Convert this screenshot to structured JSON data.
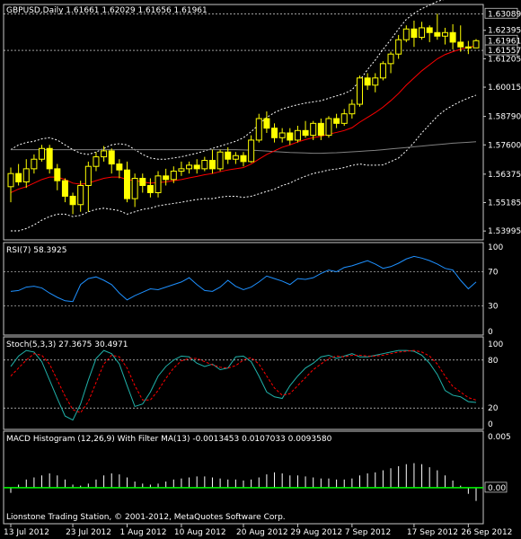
{
  "colors": {
    "background": "#000000",
    "frame": "#c8c8c8",
    "grid_dashed": "#ffffff",
    "bull_candle": "#ffff00",
    "bear_candle": "#000000",
    "candle_outline": "#ffff00",
    "ma_fast": "#ff0000",
    "ma_slow": "#808080",
    "bollinger": "#ffffff",
    "rsi_line": "#1e90ff",
    "stoch_main": "#20b2aa",
    "stoch_signal": "#ff0000",
    "macd_hist": "#ffffff",
    "macd_signal": "#00ff00",
    "current_price_box": "#000000"
  },
  "footer_text": "Lionstone Trading Station, © 2001-2012, MetaQuotes Software Corp.",
  "chart_data": [
    {
      "type": "candlestick",
      "title": "GBPUSD,Daily  1.61661 1.62029 1.61656 1.61961",
      "ylim": [
        1.537,
        1.634
      ],
      "y_ticks": [
        "1.63089",
        "1.62395",
        "1.61961",
        "1.61557",
        "1.61205",
        "1.60015",
        "1.58790",
        "1.57600",
        "1.56375",
        "1.55185",
        "1.53995"
      ],
      "high_line": 1.63089,
      "current_price": 1.61961,
      "ohlc": [
        [
          1.5585,
          1.5665,
          1.552,
          1.564
        ],
        [
          1.564,
          1.568,
          1.559,
          1.5605
        ],
        [
          1.5605,
          1.57,
          1.558,
          1.566
        ],
        [
          1.566,
          1.572,
          1.564,
          1.57
        ],
        [
          1.57,
          1.576,
          1.569,
          1.5745
        ],
        [
          1.5745,
          1.576,
          1.564,
          1.566
        ],
        [
          1.566,
          1.568,
          1.557,
          1.561
        ],
        [
          1.561,
          1.562,
          1.552,
          1.5545
        ],
        [
          1.5545,
          1.556,
          1.547,
          1.551
        ],
        [
          1.551,
          1.561,
          1.548,
          1.559
        ],
        [
          1.559,
          1.569,
          1.548,
          1.567
        ],
        [
          1.567,
          1.573,
          1.565,
          1.571
        ],
        [
          1.571,
          1.5755,
          1.569,
          1.5735
        ],
        [
          1.5735,
          1.5745,
          1.564,
          1.568
        ],
        [
          1.568,
          1.57,
          1.562,
          1.5655
        ],
        [
          1.5655,
          1.569,
          1.552,
          1.5535
        ],
        [
          1.5535,
          1.564,
          1.55,
          1.562
        ],
        [
          1.562,
          1.564,
          1.556,
          1.559
        ],
        [
          1.559,
          1.562,
          1.554,
          1.556
        ],
        [
          1.556,
          1.565,
          1.554,
          1.563
        ],
        [
          1.563,
          1.566,
          1.559,
          1.5615
        ],
        [
          1.5615,
          1.567,
          1.56,
          1.565
        ],
        [
          1.565,
          1.569,
          1.563,
          1.566
        ],
        [
          1.566,
          1.569,
          1.564,
          1.5675
        ],
        [
          1.5675,
          1.57,
          1.564,
          1.566
        ],
        [
          1.566,
          1.571,
          1.565,
          1.5695
        ],
        [
          1.5695,
          1.574,
          1.564,
          1.566
        ],
        [
          1.566,
          1.574,
          1.565,
          1.573
        ],
        [
          1.573,
          1.575,
          1.568,
          1.57
        ],
        [
          1.57,
          1.573,
          1.568,
          1.5715
        ],
        [
          1.5715,
          1.573,
          1.567,
          1.569
        ],
        [
          1.569,
          1.58,
          1.5685,
          1.578
        ],
        [
          1.578,
          1.589,
          1.577,
          1.587
        ],
        [
          1.587,
          1.59,
          1.581,
          1.583
        ],
        [
          1.583,
          1.585,
          1.577,
          1.579
        ],
        [
          1.579,
          1.583,
          1.577,
          1.581
        ],
        [
          1.581,
          1.583,
          1.576,
          1.578
        ],
        [
          1.578,
          1.584,
          1.577,
          1.582
        ],
        [
          1.582,
          1.586,
          1.579,
          1.58
        ],
        [
          1.58,
          1.586,
          1.578,
          1.585
        ],
        [
          1.585,
          1.587,
          1.578,
          1.58
        ],
        [
          1.58,
          1.588,
          1.579,
          1.587
        ],
        [
          1.587,
          1.589,
          1.583,
          1.585
        ],
        [
          1.585,
          1.591,
          1.584,
          1.589
        ],
        [
          1.589,
          1.595,
          1.587,
          1.593
        ],
        [
          1.593,
          1.605,
          1.592,
          1.604
        ],
        [
          1.604,
          1.606,
          1.599,
          1.601
        ],
        [
          1.601,
          1.606,
          1.598,
          1.604
        ],
        [
          1.604,
          1.611,
          1.603,
          1.61
        ],
        [
          1.61,
          1.615,
          1.606,
          1.614
        ],
        [
          1.614,
          1.622,
          1.612,
          1.62
        ],
        [
          1.62,
          1.626,
          1.619,
          1.6245
        ],
        [
          1.6245,
          1.628,
          1.617,
          1.621
        ],
        [
          1.621,
          1.6275,
          1.62,
          1.625
        ],
        [
          1.625,
          1.626,
          1.619,
          1.623
        ],
        [
          1.623,
          1.6309,
          1.62,
          1.6215
        ],
        [
          1.6215,
          1.625,
          1.618,
          1.623
        ],
        [
          1.623,
          1.6265,
          1.616,
          1.619
        ],
        [
          1.619,
          1.626,
          1.615,
          1.617
        ],
        [
          1.617,
          1.6195,
          1.614,
          1.6165
        ],
        [
          1.6166,
          1.6203,
          1.6166,
          1.6196
        ]
      ],
      "ma_fast": [
        1.556,
        1.5575,
        1.5585,
        1.56,
        1.5615,
        1.5625,
        1.5625,
        1.5615,
        1.56,
        1.5595,
        1.56,
        1.561,
        1.562,
        1.5625,
        1.5625,
        1.5615,
        1.561,
        1.5605,
        1.56,
        1.5602,
        1.5605,
        1.561,
        1.5615,
        1.5622,
        1.5628,
        1.5635,
        1.564,
        1.5648,
        1.5655,
        1.566,
        1.5665,
        1.568,
        1.57,
        1.572,
        1.5735,
        1.575,
        1.576,
        1.5772,
        1.5782,
        1.579,
        1.5796,
        1.5805,
        1.5812,
        1.582,
        1.5832,
        1.5855,
        1.5875,
        1.5895,
        1.5918,
        1.5945,
        1.5975,
        1.601,
        1.604,
        1.607,
        1.6095,
        1.612,
        1.6138,
        1.615,
        1.616,
        1.6168,
        1.6175
      ],
      "ma_slow": [
        1.574,
        1.574,
        1.574,
        1.574,
        1.574,
        1.574,
        1.574,
        1.574,
        1.574,
        1.574,
        1.574,
        1.574,
        1.574,
        1.574,
        1.574,
        1.574,
        1.574,
        1.574,
        1.574,
        1.574,
        1.574,
        1.574,
        1.574,
        1.574,
        1.574,
        1.574,
        1.574,
        1.574,
        1.574,
        1.574,
        1.5739,
        1.5738,
        1.5736,
        1.5734,
        1.5732,
        1.573,
        1.5728,
        1.5727,
        1.5726,
        1.5725,
        1.5725,
        1.5726,
        1.5727,
        1.5729,
        1.5731,
        1.5733,
        1.5735,
        1.5737,
        1.574,
        1.5743,
        1.5746,
        1.5749,
        1.5752,
        1.5755,
        1.5758,
        1.5761,
        1.5764,
        1.5767,
        1.5769,
        1.5771,
        1.5773
      ],
      "bb_upper": [
        1.574,
        1.576,
        1.577,
        1.5775,
        1.5785,
        1.579,
        1.578,
        1.576,
        1.574,
        1.5725,
        1.572,
        1.573,
        1.5745,
        1.576,
        1.5765,
        1.576,
        1.574,
        1.572,
        1.5705,
        1.57,
        1.57,
        1.5705,
        1.571,
        1.5718,
        1.5725,
        1.5735,
        1.5745,
        1.5755,
        1.5765,
        1.5775,
        1.579,
        1.5815,
        1.5845,
        1.5875,
        1.5895,
        1.591,
        1.592,
        1.5928,
        1.5935,
        1.594,
        1.5945,
        1.5955,
        1.5965,
        1.5975,
        1.599,
        1.603,
        1.6075,
        1.6115,
        1.616,
        1.62,
        1.6245,
        1.6285,
        1.631,
        1.633,
        1.6345,
        1.636,
        1.637,
        1.6375,
        1.6378,
        1.638,
        1.6382
      ],
      "bb_lower": [
        1.54,
        1.54,
        1.541,
        1.5425,
        1.5445,
        1.546,
        1.547,
        1.547,
        1.546,
        1.5465,
        1.548,
        1.549,
        1.5495,
        1.549,
        1.5485,
        1.547,
        1.548,
        1.549,
        1.5495,
        1.5505,
        1.551,
        1.5515,
        1.552,
        1.5526,
        1.5531,
        1.5535,
        1.5535,
        1.5541,
        1.5545,
        1.5545,
        1.554,
        1.5545,
        1.5555,
        1.5565,
        1.5575,
        1.559,
        1.56,
        1.5616,
        1.5629,
        1.564,
        1.5647,
        1.5655,
        1.5659,
        1.5665,
        1.5674,
        1.568,
        1.5675,
        1.5675,
        1.5676,
        1.569,
        1.5705,
        1.5735,
        1.577,
        1.581,
        1.5845,
        1.588,
        1.5906,
        1.5925,
        1.5942,
        1.5956,
        1.5968
      ]
    },
    {
      "type": "line",
      "title": "RSI(7) 58.3925",
      "ylim": [
        0,
        100
      ],
      "y_ticks": [
        "100",
        "70",
        "30",
        "0"
      ],
      "levels": [
        70,
        30
      ],
      "values": [
        47,
        48,
        52,
        53,
        51,
        45,
        40,
        36,
        35,
        55,
        62,
        64,
        60,
        55,
        45,
        37,
        42,
        46,
        50,
        49,
        52,
        55,
        58,
        63,
        55,
        48,
        47,
        52,
        60,
        53,
        49,
        52,
        58,
        65,
        62,
        59,
        55,
        62,
        61,
        63,
        68,
        72,
        70,
        75,
        77,
        80,
        83,
        79,
        74,
        76,
        80,
        85,
        88,
        86,
        83,
        79,
        74,
        72,
        60,
        50,
        58
      ]
    },
    {
      "type": "line",
      "title": "Stoch(5,3,3) 27.3675 30.4971",
      "ylim": [
        0,
        100
      ],
      "y_ticks": [
        "100",
        "80",
        "20",
        "0"
      ],
      "levels": [
        80,
        20
      ],
      "series": [
        {
          "values": [
            72,
            85,
            92,
            90,
            78,
            55,
            32,
            10,
            5,
            25,
            55,
            82,
            92,
            88,
            75,
            48,
            22,
            25,
            40,
            60,
            72,
            80,
            85,
            84,
            76,
            72,
            75,
            68,
            70,
            84,
            85,
            78,
            60,
            40,
            34,
            32,
            48,
            60,
            70,
            76,
            84,
            86,
            82,
            85,
            88,
            84,
            84,
            86,
            88,
            90,
            92,
            92,
            91,
            86,
            76,
            62,
            42,
            36,
            34,
            28,
            27
          ]
        },
        {
          "values": [
            60,
            70,
            80,
            88,
            86,
            75,
            55,
            35,
            18,
            14,
            28,
            52,
            75,
            86,
            84,
            70,
            48,
            30,
            30,
            42,
            57,
            70,
            79,
            82,
            82,
            78,
            74,
            71,
            70,
            73,
            80,
            83,
            75,
            60,
            45,
            36,
            38,
            48,
            58,
            68,
            75,
            82,
            85,
            84,
            86,
            86,
            85,
            85,
            86,
            88,
            90,
            91,
            92,
            90,
            85,
            75,
            60,
            47,
            40,
            33,
            30
          ]
        }
      ]
    },
    {
      "type": "bar",
      "title": "MACD Histogram (12,26,9) With Filter MA(13) -0.0013453 0.0107033 0.0093580",
      "ylim": [
        -0.003,
        0.005
      ],
      "y_ticks": [
        "0.005",
        "0.00"
      ],
      "values": [
        -0.0005,
        0.0003,
        0.0008,
        0.001,
        0.0012,
        0.0014,
        0.0012,
        0.0008,
        0.0003,
        0.0002,
        0.0004,
        0.0008,
        0.0012,
        0.0014,
        0.0013,
        0.001,
        0.0006,
        0.0004,
        0.0003,
        0.0004,
        0.0006,
        0.0008,
        0.0009,
        0.001,
        0.0011,
        0.0011,
        0.001,
        0.0009,
        0.0008,
        0.0008,
        0.0007,
        0.0008,
        0.001,
        0.0013,
        0.0015,
        0.0014,
        0.0012,
        0.0012,
        0.0011,
        0.001,
        0.0009,
        0.0009,
        0.0008,
        0.0008,
        0.0009,
        0.0012,
        0.0014,
        0.0015,
        0.0017,
        0.0019,
        0.0021,
        0.0023,
        0.0024,
        0.0023,
        0.002,
        0.0017,
        0.0012,
        0.0007,
        0.0002,
        -0.0006,
        -0.0013
      ],
      "signal_value": 0.0
    }
  ],
  "x_axis": {
    "labels": [
      "13 Jul 2012",
      "23 Jul 2012",
      "1 Aug 2012",
      "10 Aug 2012",
      "20 Aug 2012",
      "29 Aug 2012",
      "7 Sep 2012",
      "17 Sep 2012",
      "26 Sep 2012"
    ],
    "label_bar_index": [
      0,
      8,
      15,
      22,
      30,
      37,
      44,
      52,
      59
    ]
  }
}
